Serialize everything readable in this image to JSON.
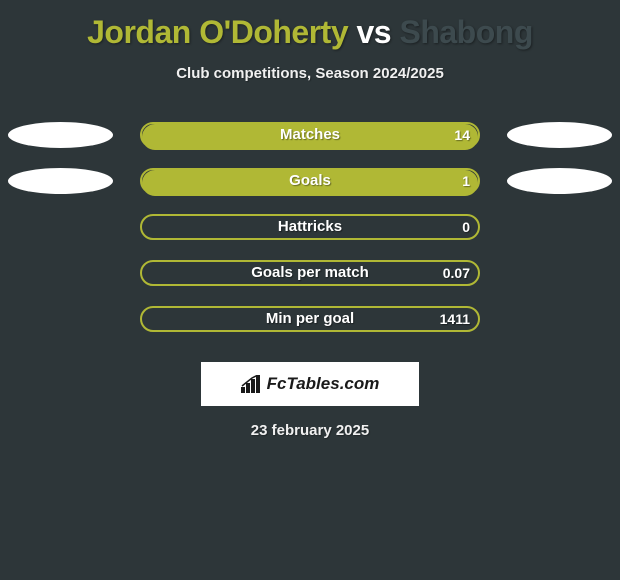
{
  "background_color": "#2d3639",
  "title": {
    "prefix": "Jordan O'Doherty",
    "vs": " vs ",
    "suffix": "Shabong",
    "prefix_color": "#b0b835",
    "vs_color": "#ffffff",
    "suffix_color": "#3d4a4e",
    "fontsize": 32
  },
  "subtitle": "Club competitions, Season 2024/2025",
  "bar": {
    "outer_border_color": "#b0b835",
    "fill_color": "#b0b835",
    "outer_width": 340,
    "height": 26
  },
  "ellipse_color": "#ffffff",
  "rows": [
    {
      "label": "Matches",
      "value": "14",
      "fill_pct": 100,
      "left_ellipse": true,
      "right_ellipse": true
    },
    {
      "label": "Goals",
      "value": "1",
      "fill_pct": 100,
      "left_ellipse": true,
      "right_ellipse": true
    },
    {
      "label": "Hattricks",
      "value": "0",
      "fill_pct": 0,
      "left_ellipse": false,
      "right_ellipse": false
    },
    {
      "label": "Goals per match",
      "value": "0.07",
      "fill_pct": 0,
      "left_ellipse": false,
      "right_ellipse": false
    },
    {
      "label": "Min per goal",
      "value": "1411",
      "fill_pct": 0,
      "left_ellipse": false,
      "right_ellipse": false
    }
  ],
  "logo_text": "FcTables.com",
  "date": "23 february 2025"
}
